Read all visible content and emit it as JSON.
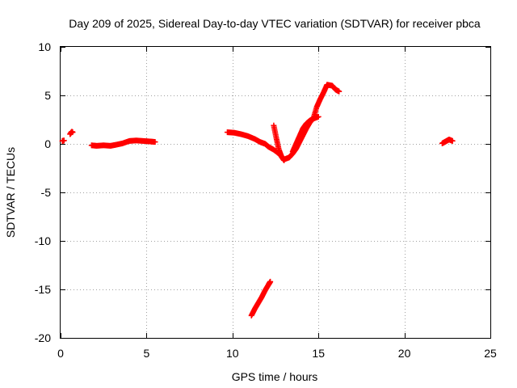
{
  "chart_data": {
    "type": "scatter",
    "title": "Day 209 of 2025, Sidereal Day-to-day VTEC variation (SDTVAR) for receiver pbca",
    "xlabel": "GPS time / hours",
    "ylabel": "SDTVAR / TECUs",
    "xlim": [
      0,
      25
    ],
    "ylim": [
      -20,
      10
    ],
    "xticks": [
      0,
      5,
      10,
      15,
      20,
      25
    ],
    "yticks": [
      -20,
      -15,
      -10,
      -5,
      0,
      5,
      10
    ],
    "grid": true,
    "marker": "+",
    "color": "#ff0000",
    "series": [
      {
        "name": "SDTVAR",
        "segments": [
          {
            "x": [
              0.1,
              0.2
            ],
            "y": [
              0.3,
              0.35
            ]
          },
          {
            "x": [
              0.55,
              0.65,
              0.7
            ],
            "y": [
              1.0,
              1.25,
              1.2
            ]
          },
          {
            "x": [
              1.8,
              2.1,
              2.5,
              2.9,
              3.2,
              3.6,
              4.0,
              4.4,
              4.8,
              5.2,
              5.5
            ],
            "y": [
              -0.15,
              -0.2,
              -0.15,
              -0.2,
              -0.1,
              0.05,
              0.3,
              0.35,
              0.3,
              0.25,
              0.2
            ]
          },
          {
            "x": [
              9.7,
              10.1,
              10.5,
              10.9,
              11.3,
              11.6,
              11.9,
              12.1,
              12.4,
              12.7,
              13.0,
              13.3,
              13.5,
              13.7,
              13.9,
              14.1,
              14.3,
              14.5,
              14.7,
              14.9,
              15.1,
              15.3,
              15.5,
              15.8,
              16.0,
              16.2
            ],
            "y": [
              1.2,
              1.15,
              1.0,
              0.8,
              0.5,
              0.2,
              0.0,
              -0.3,
              -0.6,
              -1.0,
              -1.6,
              -1.4,
              -1.0,
              -0.5,
              0.2,
              0.9,
              1.6,
              2.2,
              2.6,
              3.8,
              4.6,
              5.3,
              6.1,
              6.0,
              5.6,
              5.4
            ]
          },
          {
            "x": [
              12.4,
              12.55,
              12.7,
              12.85,
              13.0
            ],
            "y": [
              1.9,
              0.6,
              -0.6,
              -1.3,
              -1.7
            ]
          },
          {
            "x": [
              13.5,
              13.7,
              13.9,
              14.1,
              14.3,
              14.5,
              14.7,
              15.0
            ],
            "y": [
              -0.8,
              0.0,
              0.8,
              1.6,
              2.1,
              2.4,
              2.6,
              2.8
            ]
          },
          {
            "x": [
              11.1,
              11.3,
              11.5,
              11.7,
              11.9,
              12.1,
              12.2
            ],
            "y": [
              -17.7,
              -17.0,
              -16.4,
              -15.8,
              -15.1,
              -14.5,
              -14.2
            ]
          },
          {
            "x": [
              22.2,
              22.4,
              22.6,
              22.8
            ],
            "y": [
              0.05,
              0.25,
              0.45,
              0.3
            ]
          }
        ]
      }
    ]
  }
}
